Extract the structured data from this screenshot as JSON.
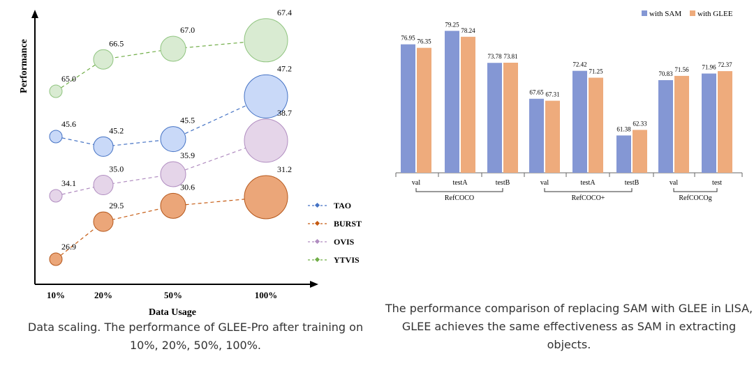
{
  "charts": [
    {
      "type": "scatter",
      "title": "",
      "xlabel": "Data Usage",
      "ylabel": "Performance",
      "categories": [
        "10%",
        "20%",
        "50%",
        "100%"
      ],
      "legend_position": "right",
      "series": [
        {
          "name": "TAO",
          "values": [
            45.6,
            45.2,
            45.5,
            47.2
          ],
          "stroke": "#4472c4",
          "fill": "#c9d9f8",
          "edge": "#4472c4"
        },
        {
          "name": "BURST",
          "values": [
            26.9,
            29.5,
            30.6,
            31.2
          ],
          "stroke": "#c55a11",
          "fill": "#eba679",
          "edge": "#b4561a"
        },
        {
          "name": "OVIS",
          "values": [
            34.1,
            35.0,
            35.9,
            38.7
          ],
          "stroke": "#b08cc0",
          "fill": "#e5d5e9",
          "edge": "#b08cc0"
        },
        {
          "name": "YTVIS",
          "values": [
            65.0,
            66.5,
            67.0,
            67.4
          ],
          "stroke": "#70ad47",
          "fill": "#d9ebd2",
          "edge": "#8fc47f"
        }
      ]
    },
    {
      "type": "bar",
      "title": "",
      "categories": [
        "val",
        "testA",
        "testB",
        "val",
        "testA",
        "testB",
        "val",
        "test"
      ],
      "groups": [
        {
          "label": "RefCOCO",
          "start": 0,
          "end": 2
        },
        {
          "label": "RefCOCO+",
          "start": 3,
          "end": 5
        },
        {
          "label": "RefCOCOg",
          "start": 6,
          "end": 7
        }
      ],
      "ylim": [
        55,
        80
      ],
      "legend_position": "top-right",
      "series": [
        {
          "name": "with SAM",
          "values": [
            76.95,
            79.25,
            73.78,
            67.65,
            72.42,
            61.38,
            70.83,
            71.96
          ],
          "labels": [
            "76.95",
            "79.25",
            "73.78",
            "67.65",
            "72.42",
            "61.38",
            "70.83",
            "71.96"
          ],
          "color": "#8497d4"
        },
        {
          "name": "with GLEE",
          "values": [
            76.35,
            78.24,
            73.81,
            67.31,
            71.25,
            62.33,
            71.56,
            72.37
          ],
          "labels": [
            "76.35",
            "78.24",
            "73.81",
            "67.31",
            "71.25",
            "62.33",
            "71.56",
            "72.37"
          ],
          "color": "#eeab7c"
        }
      ]
    }
  ],
  "captions": {
    "left": "Data scaling. The performance of GLEE-Pro after training on 10%, 20%, 50%, 100%.",
    "right": "The performance comparison of replacing SAM with GLEE in LISA, GLEE achieves the same effectiveness as SAM in extracting objects."
  }
}
